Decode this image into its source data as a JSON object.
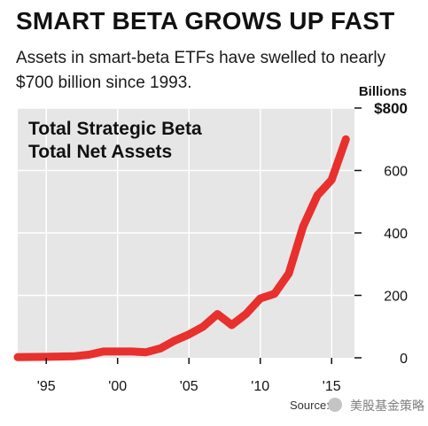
{
  "header": {
    "title": "SMART BETA GROWS UP FAST",
    "subtitle": "Assets in smart-beta ETFs have swelled to nearly $700 billion since 1993."
  },
  "footer": {
    "source": "Source: ",
    "watermark": "美股基金策略"
  },
  "colors": {
    "plot_background": "#e6e6e6",
    "line": "#e8302d",
    "grid": "#ffffff"
  },
  "chart_data": {
    "type": "line",
    "title": "Total Strategic Beta Total Net Assets",
    "title_lines": [
      "Total Strategic Beta",
      "Total Net Assets"
    ],
    "ylabel": "Billions",
    "y_unit_label": "$800",
    "ylim": [
      0,
      800
    ],
    "xlim": [
      1993,
      2016.6
    ],
    "yticks": [
      0,
      200,
      400,
      600,
      800
    ],
    "ytick_labels": [
      "0",
      "200",
      "400",
      "600",
      "$800"
    ],
    "xticks": [
      1995,
      2000,
      2005,
      2010,
      2015
    ],
    "xtick_labels": [
      "'95",
      "'00",
      "'05",
      "'10",
      "'15"
    ],
    "grid": true,
    "series": [
      {
        "x": [
          1993,
          1995,
          1997,
          1998,
          1999,
          2000,
          2001,
          2002,
          2003,
          2004,
          2005,
          2006,
          2007,
          2008,
          2009,
          2010,
          2011,
          2012,
          2013,
          2014,
          2015,
          2016
        ],
        "y": [
          2,
          3,
          5,
          10,
          20,
          20,
          20,
          18,
          30,
          55,
          75,
          100,
          140,
          105,
          140,
          190,
          205,
          270,
          420,
          520,
          570,
          700
        ]
      }
    ]
  }
}
